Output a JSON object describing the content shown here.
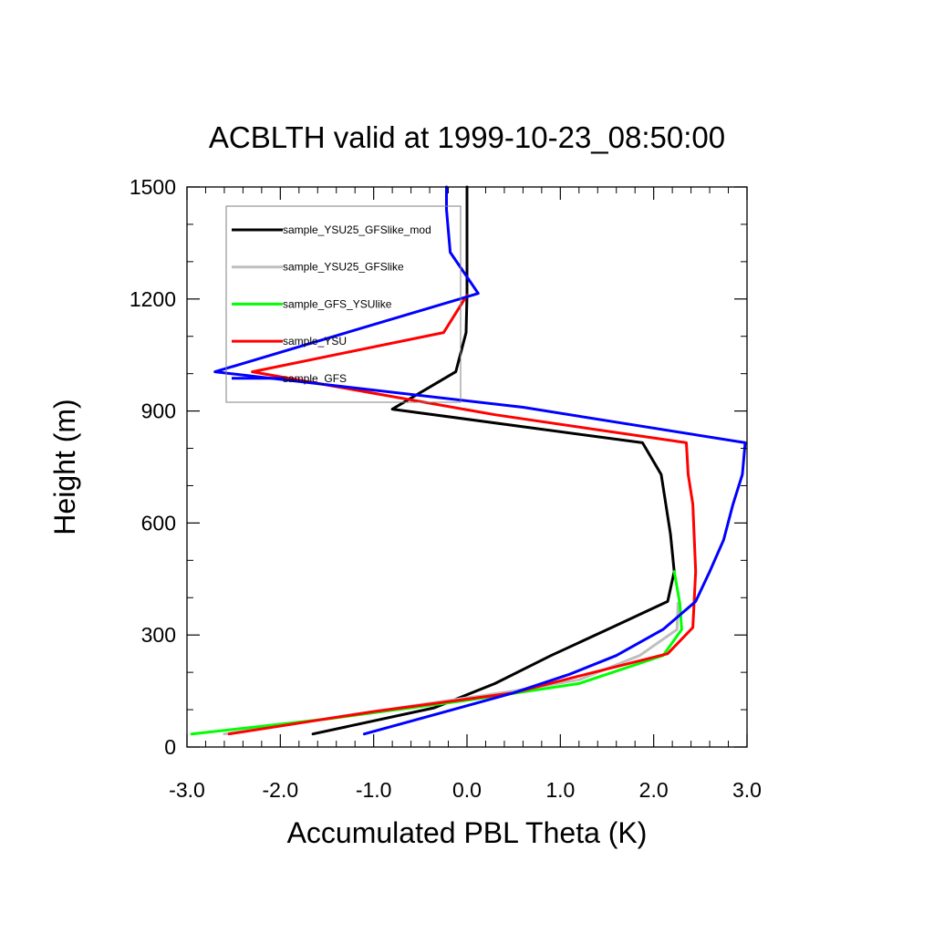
{
  "chart_data": {
    "type": "line",
    "title": "ACBLTH valid at 1999-10-23_08:50:00",
    "xlabel": "Accumulated PBL Theta (K)",
    "ylabel": "Height (m)",
    "xlim": [
      -3.0,
      3.0
    ],
    "ylim": [
      0,
      1500
    ],
    "x_ticks": [
      -3.0,
      -2.0,
      -1.0,
      0.0,
      1.0,
      2.0,
      3.0
    ],
    "x_tick_labels": [
      "-3.0",
      "-2.0",
      "-1.0",
      "0.0",
      "1.0",
      "2.0",
      "3.0"
    ],
    "y_ticks": [
      0,
      300,
      600,
      900,
      1200,
      1500
    ],
    "y_tick_labels": [
      "0",
      "300",
      "600",
      "900",
      "1200",
      "1500"
    ],
    "grid": false,
    "legend_position": "top-left",
    "series": [
      {
        "name": "sample_YSU25_GFSlike_mod",
        "color": "#000000",
        "points": [
          [
            -1.65,
            35
          ],
          [
            -0.35,
            105
          ],
          [
            0.3,
            170
          ],
          [
            0.9,
            245
          ],
          [
            1.55,
            320
          ],
          [
            2.15,
            390
          ],
          [
            2.22,
            470
          ],
          [
            2.18,
            570
          ],
          [
            2.08,
            730
          ],
          [
            1.88,
            815
          ],
          [
            -0.8,
            905
          ],
          [
            -0.12,
            1005
          ],
          [
            -0.01,
            1110
          ],
          [
            0.0,
            1210
          ],
          [
            0.0,
            1500
          ]
        ]
      },
      {
        "name": "sample_YSU25_GFSlike",
        "color": "#bebebe",
        "points": [
          [
            -2.6,
            35
          ],
          [
            -1.0,
            95
          ],
          [
            0.5,
            150
          ],
          [
            1.2,
            180
          ],
          [
            1.85,
            245
          ],
          [
            2.25,
            315
          ],
          [
            2.26,
            385
          ]
        ]
      },
      {
        "name": "sample_GFS_YSUlike",
        "color": "#00ff00",
        "points": [
          [
            -2.95,
            35
          ],
          [
            -1.5,
            75
          ],
          [
            0.0,
            125
          ],
          [
            1.2,
            170
          ],
          [
            2.1,
            245
          ],
          [
            2.3,
            315
          ],
          [
            2.28,
            385
          ],
          [
            2.22,
            470
          ]
        ]
      },
      {
        "name": "sample_YSU",
        "color": "#ff0000",
        "points": [
          [
            -2.55,
            35
          ],
          [
            -1.0,
            95
          ],
          [
            0.5,
            145
          ],
          [
            1.2,
            190
          ],
          [
            2.15,
            250
          ],
          [
            2.42,
            320
          ],
          [
            2.45,
            470
          ],
          [
            2.42,
            650
          ],
          [
            2.37,
            730
          ],
          [
            2.35,
            815
          ],
          [
            0.3,
            890
          ],
          [
            -2.3,
            1005
          ],
          [
            -0.25,
            1110
          ],
          [
            0.0,
            1210
          ]
        ]
      },
      {
        "name": "sample_GFS",
        "color": "#0000ff",
        "points": [
          [
            -1.1,
            35
          ],
          [
            -0.3,
            90
          ],
          [
            0.5,
            145
          ],
          [
            1.1,
            195
          ],
          [
            1.6,
            245
          ],
          [
            2.1,
            315
          ],
          [
            2.45,
            390
          ],
          [
            2.6,
            470
          ],
          [
            2.75,
            555
          ],
          [
            2.85,
            650
          ],
          [
            2.95,
            730
          ],
          [
            2.98,
            815
          ],
          [
            0.6,
            910
          ],
          [
            -2.7,
            1005
          ],
          [
            0.12,
            1215
          ],
          [
            -0.18,
            1325
          ],
          [
            -0.22,
            1440
          ],
          [
            -0.22,
            1500
          ]
        ]
      }
    ]
  }
}
